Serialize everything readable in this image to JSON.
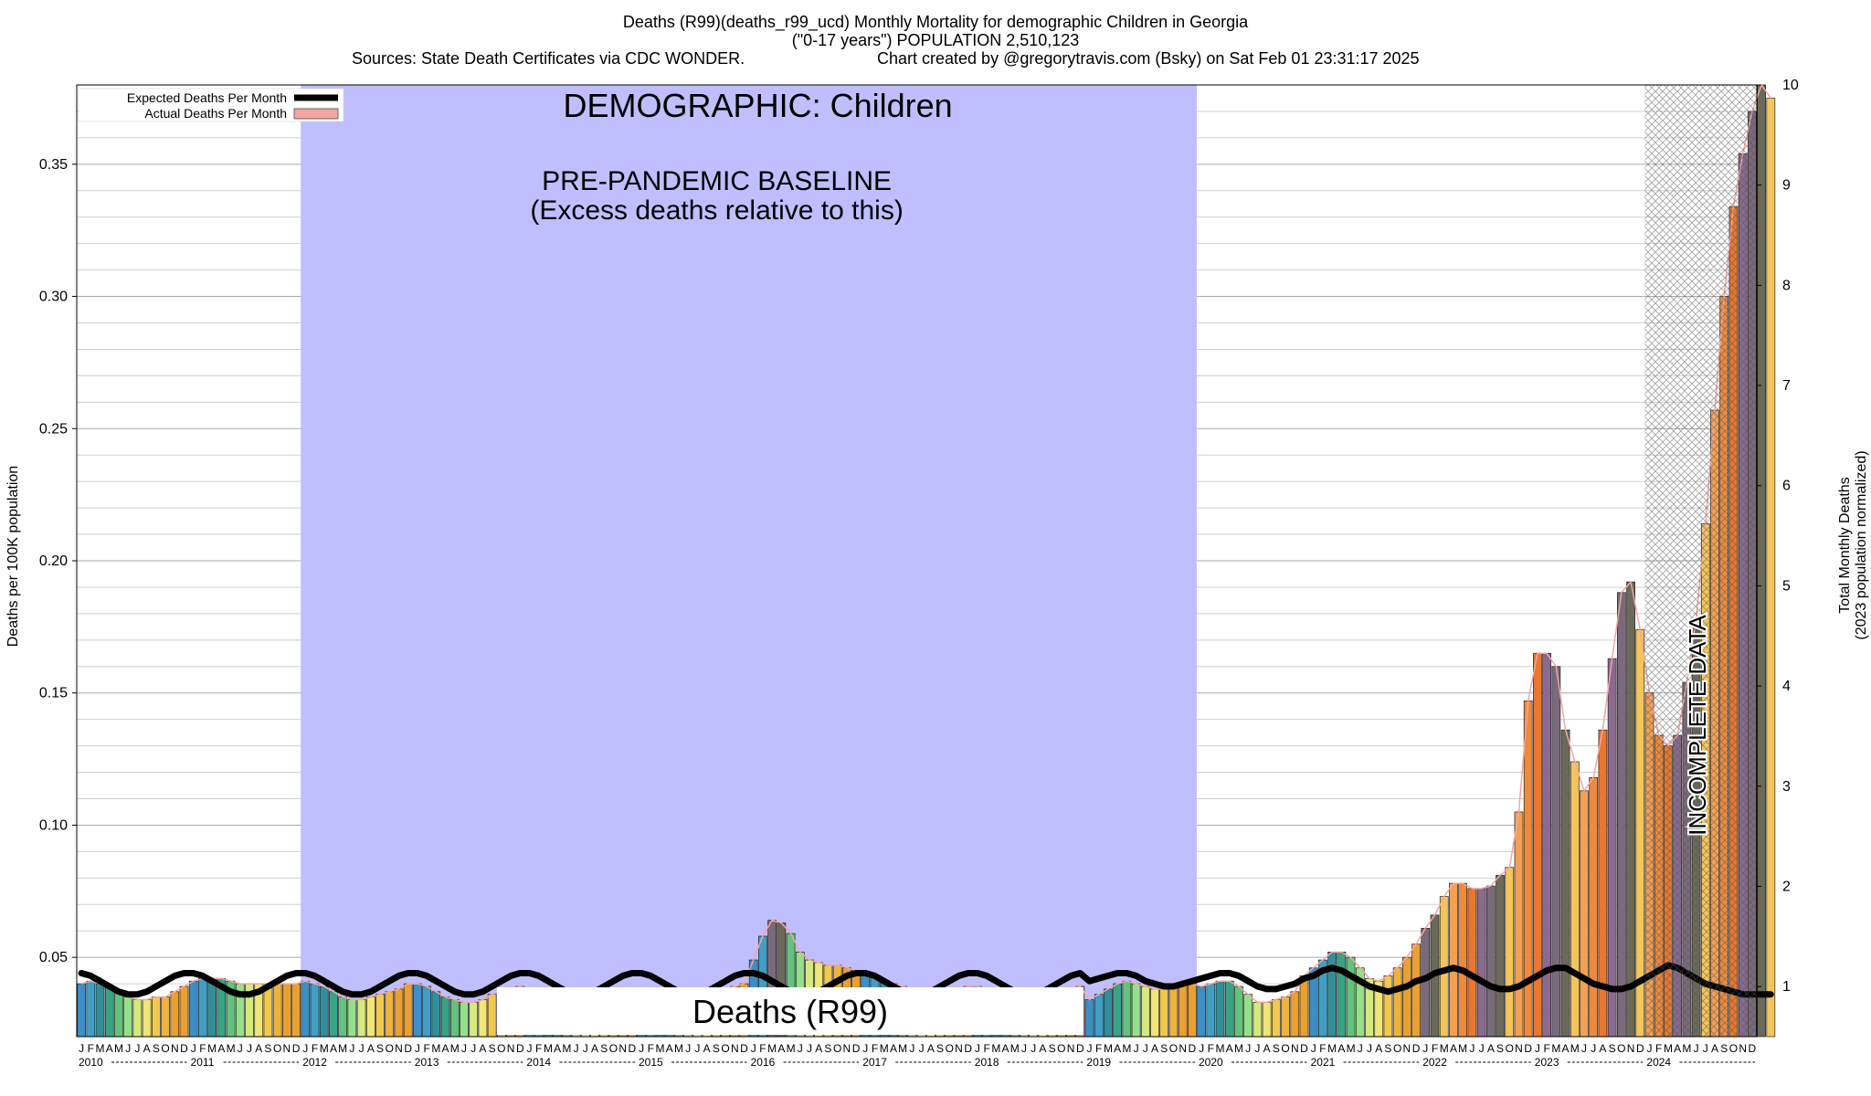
{
  "header": {
    "title": "Deaths (R99)(deaths_r99_ucd) Monthly Mortality for demographic Children in Georgia",
    "subtitle": "(\"0-17 years\") POPULATION 2,510,123",
    "sources": "Sources: State Death Certificates via CDC WONDER.",
    "credit": "Chart created by @gregorytravis.com (Bsky) on Sat Feb 01 23:31:17 2025"
  },
  "chart_data": {
    "type": "bar",
    "ylabel": "Deaths per 100K population",
    "y2label_line1": "Total Monthly Deaths",
    "y2label_line2": "(2023 population normalized)",
    "ylim": [
      0.02,
      0.38
    ],
    "y2lim": [
      0.5,
      10
    ],
    "y_ticks": [
      "0.05",
      "0.10",
      "0.15",
      "0.20",
      "0.25",
      "0.30",
      "0.35"
    ],
    "y2_ticks": [
      "1",
      "2",
      "3",
      "4",
      "5",
      "6",
      "7",
      "8",
      "9",
      "10"
    ],
    "month_letters": [
      "J",
      "F",
      "M",
      "A",
      "M",
      "J",
      "J",
      "A",
      "S",
      "O",
      "N",
      "D"
    ],
    "years": [
      "2010",
      "2011",
      "2012",
      "2013",
      "2014",
      "2015",
      "2016",
      "2017",
      "2018",
      "2019",
      "2020",
      "2021",
      "2022",
      "2023",
      "2024"
    ],
    "legend": [
      {
        "label": "Expected Deaths Per Month",
        "color": "#000000"
      },
      {
        "label": "Actual Deaths Per Month",
        "color": "#f4a6a0"
      }
    ],
    "baseline_label": "DEMOGRAPHIC: Children",
    "baseline_title": "PRE-PANDEMIC BASELINE",
    "baseline_sub": "(Excess deaths relative to this)",
    "baseline_color": "#bfbfff",
    "cause_label": "Deaths (R99)",
    "incomplete_label": "INCOMPLETE DATA",
    "actual": [
      0.04,
      0.041,
      0.04,
      0.039,
      0.037,
      0.035,
      0.034,
      0.034,
      0.035,
      0.035,
      0.037,
      0.039,
      0.041,
      0.042,
      0.042,
      0.042,
      0.041,
      0.04,
      0.04,
      0.04,
      0.04,
      0.04,
      0.04,
      0.04,
      0.041,
      0.04,
      0.039,
      0.037,
      0.035,
      0.034,
      0.034,
      0.035,
      0.036,
      0.037,
      0.038,
      0.04,
      0.04,
      0.039,
      0.037,
      0.035,
      0.034,
      0.033,
      0.033,
      0.034,
      0.036,
      0.037,
      0.038,
      0.039,
      0.038,
      0.037,
      0.036,
      0.035,
      0.034,
      0.033,
      0.033,
      0.034,
      0.035,
      0.036,
      0.037,
      0.038,
      0.038,
      0.037,
      0.036,
      0.035,
      0.034,
      0.034,
      0.035,
      0.036,
      0.037,
      0.038,
      0.039,
      0.04,
      0.049,
      0.058,
      0.064,
      0.063,
      0.059,
      0.052,
      0.049,
      0.048,
      0.047,
      0.047,
      0.046,
      0.045,
      0.044,
      0.043,
      0.041,
      0.04,
      0.039,
      0.038,
      0.037,
      0.037,
      0.037,
      0.037,
      0.038,
      0.039,
      0.039,
      0.038,
      0.037,
      0.036,
      0.035,
      0.034,
      0.034,
      0.035,
      0.036,
      0.037,
      0.038,
      0.039,
      0.034,
      0.036,
      0.038,
      0.04,
      0.041,
      0.04,
      0.039,
      0.038,
      0.038,
      0.039,
      0.04,
      0.04,
      0.039,
      0.04,
      0.041,
      0.041,
      0.039,
      0.036,
      0.033,
      0.033,
      0.034,
      0.035,
      0.037,
      0.043,
      0.046,
      0.049,
      0.052,
      0.052,
      0.05,
      0.046,
      0.042,
      0.041,
      0.043,
      0.046,
      0.05,
      0.055,
      0.061,
      0.066,
      0.073,
      0.078,
      0.078,
      0.076,
      0.076,
      0.077,
      0.081,
      0.084,
      0.105,
      0.147,
      0.165,
      0.165,
      0.16,
      0.136,
      0.124,
      0.113,
      0.118,
      0.136,
      0.163,
      0.188,
      0.192,
      0.174,
      0.15,
      0.134,
      0.13,
      0.134,
      0.154,
      0.178,
      0.214,
      0.257,
      0.3,
      0.334,
      0.354,
      0.37,
      0.38,
      0.375
    ],
    "expected": [
      0.044,
      0.043,
      0.041,
      0.039,
      0.037,
      0.036,
      0.036,
      0.037,
      0.039,
      0.041,
      0.043,
      0.044,
      0.044,
      0.043,
      0.041,
      0.039,
      0.037,
      0.036,
      0.036,
      0.037,
      0.039,
      0.041,
      0.043,
      0.044,
      0.044,
      0.043,
      0.041,
      0.039,
      0.037,
      0.036,
      0.036,
      0.037,
      0.039,
      0.041,
      0.043,
      0.044,
      0.044,
      0.043,
      0.041,
      0.039,
      0.037,
      0.036,
      0.036,
      0.037,
      0.039,
      0.041,
      0.043,
      0.044,
      0.044,
      0.043,
      0.041,
      0.039,
      0.037,
      0.036,
      0.036,
      0.037,
      0.039,
      0.041,
      0.043,
      0.044,
      0.044,
      0.043,
      0.041,
      0.039,
      0.037,
      0.036,
      0.036,
      0.037,
      0.039,
      0.041,
      0.043,
      0.044,
      0.044,
      0.043,
      0.041,
      0.039,
      0.037,
      0.036,
      0.036,
      0.037,
      0.039,
      0.041,
      0.043,
      0.044,
      0.044,
      0.043,
      0.041,
      0.039,
      0.037,
      0.036,
      0.036,
      0.037,
      0.039,
      0.041,
      0.043,
      0.044,
      0.044,
      0.043,
      0.041,
      0.039,
      0.037,
      0.036,
      0.036,
      0.037,
      0.039,
      0.041,
      0.043,
      0.044,
      0.041,
      0.042,
      0.043,
      0.044,
      0.044,
      0.043,
      0.041,
      0.04,
      0.039,
      0.039,
      0.04,
      0.041,
      0.042,
      0.043,
      0.044,
      0.044,
      0.043,
      0.041,
      0.039,
      0.038,
      0.038,
      0.039,
      0.04,
      0.042,
      0.043,
      0.045,
      0.046,
      0.045,
      0.043,
      0.041,
      0.039,
      0.038,
      0.037,
      0.038,
      0.039,
      0.041,
      0.042,
      0.044,
      0.045,
      0.046,
      0.045,
      0.043,
      0.041,
      0.039,
      0.038,
      0.038,
      0.039,
      0.041,
      0.043,
      0.045,
      0.046,
      0.046,
      0.044,
      0.042,
      0.04,
      0.039,
      0.038,
      0.038,
      0.039,
      0.041,
      0.043,
      0.045,
      0.047,
      0.046,
      0.044,
      0.042,
      0.04,
      0.039,
      0.038,
      0.037,
      0.036,
      0.036,
      0.036,
      0.036
    ]
  }
}
